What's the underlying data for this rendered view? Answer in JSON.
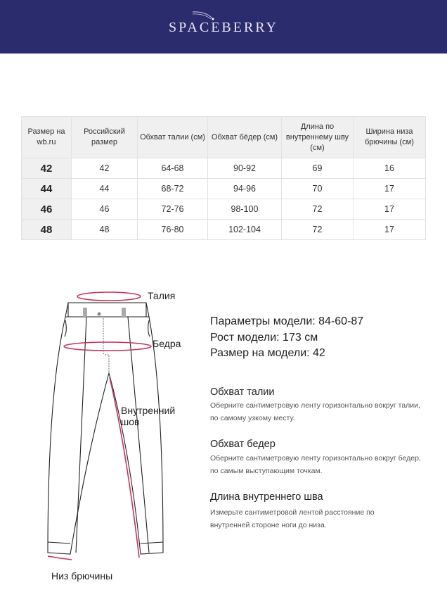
{
  "brand": {
    "logo": "SPACEBERRY",
    "colors": {
      "header": "#2b2c6e",
      "accent": "#c8325a"
    }
  },
  "table": {
    "headers": [
      "Размер на wb.ru",
      "Российский размер",
      "Обхват талии (см)",
      "Обхват бёдер (см)",
      "Длина по внутреннему шву (см)",
      "Ширина низа брючины (см)"
    ],
    "rows": [
      [
        "42",
        "42",
        "64-68",
        "90-92",
        "69",
        "16"
      ],
      [
        "44",
        "44",
        "68-72",
        "94-96",
        "70",
        "17"
      ],
      [
        "46",
        "46",
        "72-76",
        "98-100",
        "72",
        "17"
      ],
      [
        "48",
        "48",
        "76-80",
        "102-104",
        "72",
        "17"
      ]
    ]
  },
  "diagram": {
    "waist": "Талия",
    "hips": "Бедра",
    "inseam": "Внутренний шов",
    "hem": "Низ брючины"
  },
  "model": {
    "params": "Параметры модели: 84-60-87",
    "height": "Рост модели: 173 см",
    "size": "Размер на модели: 42"
  },
  "guide": [
    {
      "title": "Обхват талии",
      "text": "Оберните сантиметровую ленту горизонтально вокруг талии, по самому узкому месту."
    },
    {
      "title": "Обхват бедер",
      "text": "Оберните сантиметровую ленту горизонтально вокруг бедер, по самым выступающим точкам."
    },
    {
      "title": "Длина внутреннего шва",
      "text": "Измерьте сантиметровой лентой расстояние по внутренней стороне ноги до низа."
    }
  ]
}
